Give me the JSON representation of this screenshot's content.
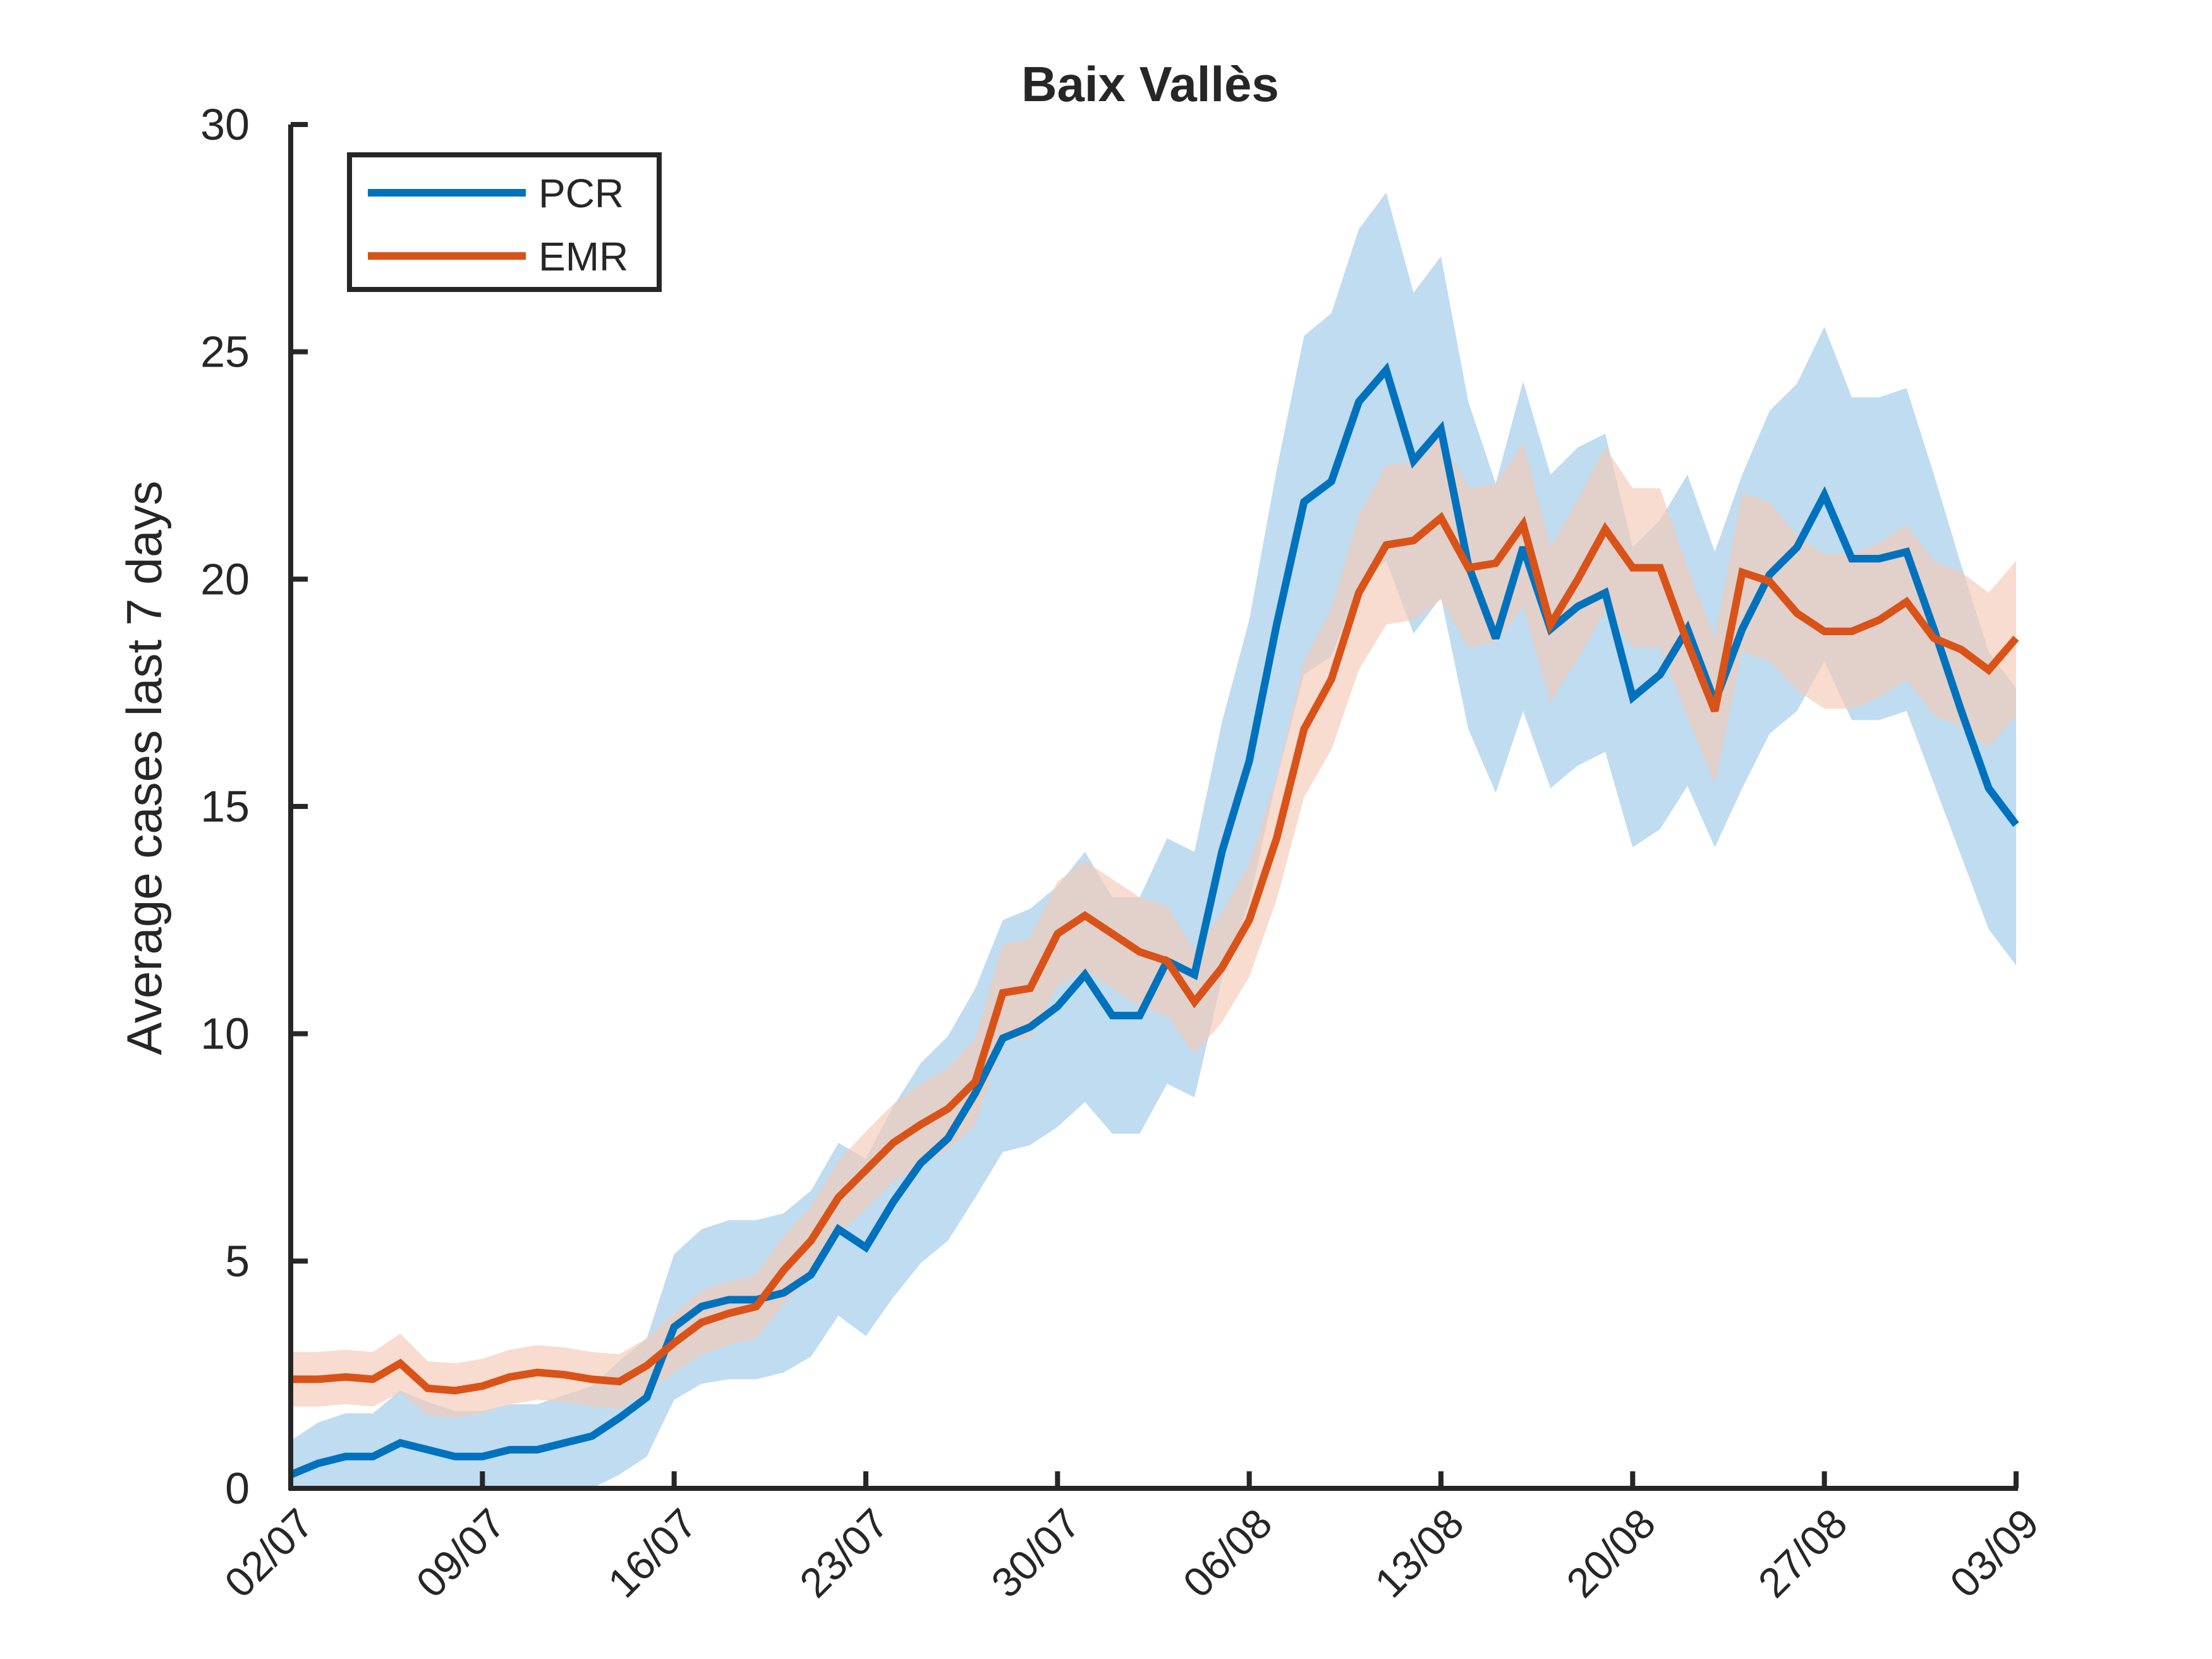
{
  "chart_data": {
    "type": "line",
    "title": "Baix Vallès",
    "xlabel": "",
    "ylabel": "Average cases last 7 days",
    "x_tick_labels": [
      "02/07",
      "09/07",
      "16/07",
      "23/07",
      "30/07",
      "06/08",
      "13/08",
      "20/08",
      "27/08",
      "03/09"
    ],
    "x_tick_days": [
      0,
      7,
      14,
      21,
      28,
      35,
      42,
      49,
      56,
      63
    ],
    "xlim": [
      0,
      63
    ],
    "ylim": [
      0,
      30
    ],
    "yticks": [
      0,
      5,
      10,
      15,
      20,
      25,
      30
    ],
    "grid": false,
    "legend_position": "top-left",
    "series": [
      {
        "name": "PCR",
        "color": "#0072BD",
        "band_color": "#9ECAE9",
        "values": [
          0.3,
          0.55,
          0.7,
          0.7,
          1.0,
          0.85,
          0.7,
          0.7,
          0.85,
          0.85,
          1.0,
          1.15,
          1.55,
          2.0,
          3.55,
          4.0,
          4.15,
          4.15,
          4.3,
          4.7,
          5.7,
          5.3,
          6.3,
          7.15,
          7.7,
          8.7,
          9.9,
          10.15,
          10.6,
          11.3,
          10.4,
          10.4,
          11.6,
          11.3,
          14.0,
          16.0,
          19.0,
          21.7,
          22.15,
          23.9,
          24.6,
          22.6,
          23.3,
          20.3,
          18.7,
          20.7,
          18.9,
          19.4,
          19.7,
          17.4,
          17.9,
          18.9,
          17.3,
          18.9,
          20.1,
          20.7,
          21.85,
          20.45,
          20.45,
          20.6,
          18.9,
          17.1,
          15.4,
          14.6
        ],
        "lower": [
          0.0,
          0.0,
          0.0,
          0.0,
          0.0,
          0.0,
          0.0,
          0.0,
          0.0,
          0.0,
          0.0,
          0.0,
          0.3,
          0.7,
          1.95,
          2.3,
          2.4,
          2.4,
          2.55,
          2.9,
          3.8,
          3.35,
          4.2,
          4.95,
          5.45,
          6.4,
          7.4,
          7.55,
          7.95,
          8.5,
          7.8,
          7.8,
          8.9,
          8.6,
          11.2,
          12.9,
          15.6,
          17.9,
          18.3,
          19.85,
          20.4,
          18.8,
          19.6,
          16.7,
          15.3,
          17.1,
          15.4,
          15.9,
          16.2,
          14.1,
          14.5,
          15.45,
          14.1,
          15.4,
          16.6,
          17.1,
          18.2,
          16.9,
          16.9,
          17.1,
          15.5,
          13.9,
          12.3,
          11.5
        ],
        "upper": [
          1.05,
          1.45,
          1.65,
          1.65,
          2.15,
          1.9,
          1.7,
          1.7,
          1.85,
          1.85,
          2.05,
          2.25,
          2.8,
          3.3,
          5.15,
          5.7,
          5.9,
          5.9,
          6.05,
          6.55,
          7.6,
          7.25,
          8.4,
          9.35,
          9.95,
          11.0,
          12.5,
          12.75,
          13.25,
          14.0,
          13.0,
          13.0,
          14.3,
          14.0,
          16.85,
          19.1,
          22.4,
          25.35,
          25.85,
          27.7,
          28.5,
          26.3,
          27.1,
          23.9,
          22.1,
          24.35,
          22.3,
          22.9,
          23.2,
          20.7,
          21.3,
          22.3,
          20.6,
          22.3,
          23.7,
          24.3,
          25.55,
          24.0,
          24.0,
          24.2,
          22.3,
          20.3,
          18.4,
          17.6
        ]
      },
      {
        "name": "EMR",
        "color": "#D95319",
        "band_color": "#F5C9B5",
        "values": [
          2.4,
          2.4,
          2.45,
          2.4,
          2.75,
          2.2,
          2.15,
          2.25,
          2.45,
          2.55,
          2.5,
          2.4,
          2.35,
          2.7,
          3.2,
          3.65,
          3.85,
          4.0,
          4.8,
          5.45,
          6.4,
          7.0,
          7.6,
          8.0,
          8.35,
          8.95,
          10.9,
          11.0,
          12.2,
          12.6,
          12.2,
          11.8,
          11.6,
          10.7,
          11.45,
          12.5,
          14.3,
          16.7,
          17.8,
          19.7,
          20.75,
          20.85,
          21.35,
          20.25,
          20.35,
          21.2,
          19.0,
          20.0,
          21.1,
          20.25,
          20.25,
          18.6,
          17.1,
          20.15,
          19.95,
          19.25,
          18.85,
          18.85,
          19.1,
          19.5,
          18.7,
          18.45,
          18.0,
          18.7
        ],
        "lower": [
          1.8,
          1.8,
          1.85,
          1.8,
          2.1,
          1.6,
          1.55,
          1.65,
          1.85,
          1.95,
          1.9,
          1.8,
          1.75,
          2.1,
          2.55,
          2.95,
          3.15,
          3.3,
          4.05,
          4.7,
          5.6,
          6.15,
          6.75,
          7.1,
          7.45,
          8.0,
          9.85,
          9.9,
          11.05,
          11.4,
          11.0,
          10.6,
          10.4,
          9.55,
          10.25,
          11.25,
          12.95,
          15.2,
          16.25,
          18.0,
          19.0,
          19.1,
          19.55,
          18.5,
          18.6,
          19.4,
          17.3,
          18.25,
          19.3,
          18.5,
          18.5,
          16.95,
          15.5,
          18.4,
          18.2,
          17.55,
          17.15,
          17.15,
          17.4,
          17.8,
          17.0,
          16.75,
          16.3,
          17.0
        ],
        "upper": [
          3.0,
          3.0,
          3.05,
          3.0,
          3.4,
          2.8,
          2.75,
          2.85,
          3.05,
          3.15,
          3.1,
          3.0,
          2.95,
          3.3,
          3.85,
          4.35,
          4.55,
          4.7,
          5.55,
          6.2,
          7.2,
          7.85,
          8.45,
          8.9,
          9.25,
          9.9,
          11.95,
          12.1,
          13.35,
          13.8,
          13.4,
          13.0,
          12.8,
          11.85,
          12.65,
          13.75,
          15.65,
          18.2,
          19.35,
          21.4,
          22.5,
          22.6,
          23.15,
          22.0,
          22.1,
          23.0,
          20.7,
          21.75,
          22.9,
          22.0,
          22.0,
          20.25,
          18.7,
          21.9,
          21.7,
          20.95,
          20.55,
          20.55,
          20.8,
          21.2,
          20.4,
          20.15,
          19.7,
          20.4
        ]
      }
    ]
  }
}
